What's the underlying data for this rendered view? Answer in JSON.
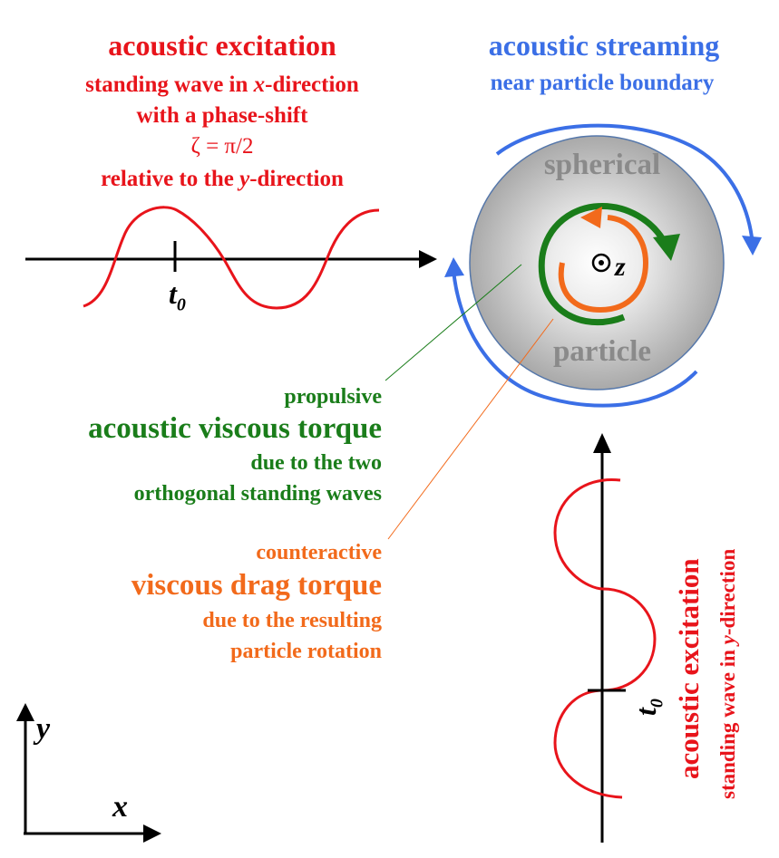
{
  "x_excitation": {
    "title": "acoustic excitation",
    "line1": "standing wave in ",
    "line1_var": "x",
    "line1_end": "-direction",
    "line2": "with a phase-shift",
    "line3": "ζ = π/2",
    "line4": "relative to the ",
    "line4_var": "y",
    "line4_end": "-direction",
    "t_label": "t",
    "t_sub": "0"
  },
  "streaming": {
    "title": "acoustic streaming",
    "subtitle": "near particle boundary"
  },
  "particle": {
    "top_label": "spherical",
    "bottom_label": "particle",
    "axis_label": "z"
  },
  "propulsive": {
    "line1": "propulsive",
    "title": "acoustic viscous torque",
    "line2": "due to the two",
    "line3": "orthogonal standing waves"
  },
  "counteractive": {
    "line1": "counteractive",
    "title": "viscous drag torque",
    "line2": "due to the resulting",
    "line3": "particle rotation"
  },
  "y_excitation": {
    "title": "acoustic excitation",
    "line1": "standing wave in ",
    "line1_var": "y",
    "line1_end": "-direction",
    "t_label": "t",
    "t_sub": "0"
  },
  "axes": {
    "x_label": "x",
    "y_label": "y"
  },
  "colors": {
    "red": "#e8141b",
    "blue": "#3b6fe6",
    "green": "#1a7d1a",
    "orange": "#f26a1b",
    "grey": "#8a8a8a"
  }
}
